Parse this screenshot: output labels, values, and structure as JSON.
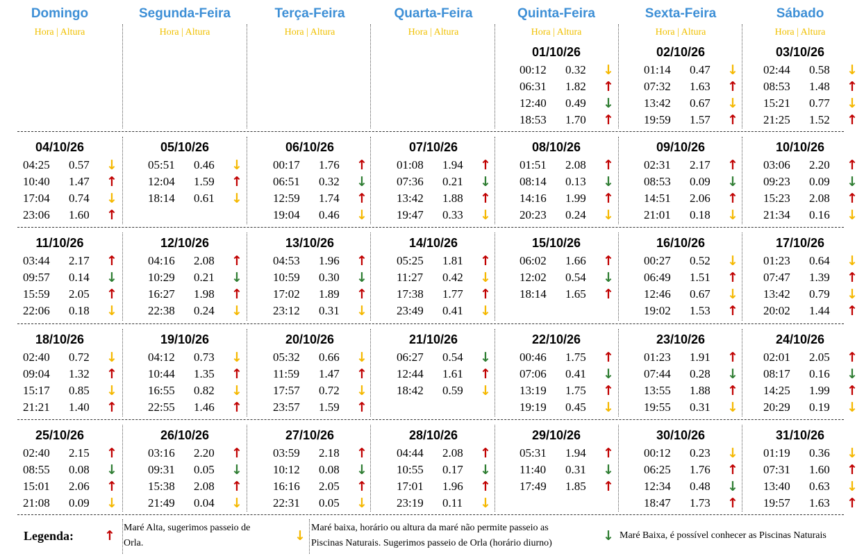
{
  "header": {
    "days": [
      "Domingo",
      "Segunda-Feira",
      "Terça-Feira",
      "Quarta-Feira",
      "Quinta-Feira",
      "Sexta-Feira",
      "Sábado"
    ],
    "subheader": "Hora | Altura"
  },
  "weeks": [
    [
      null,
      null,
      null,
      null,
      {
        "date": "01/10/26",
        "tides": [
          {
            "t": "00:12",
            "h": "0.32",
            "a": "↓",
            "c": "#f5b800"
          },
          {
            "t": "06:31",
            "h": "1.82",
            "a": "↑",
            "c": "#c00000"
          },
          {
            "t": "12:40",
            "h": "0.49",
            "a": "↓",
            "c": "#2e7d32"
          },
          {
            "t": "18:53",
            "h": "1.70",
            "a": "↑",
            "c": "#c00000"
          }
        ]
      },
      {
        "date": "02/10/26",
        "tides": [
          {
            "t": "01:14",
            "h": "0.47",
            "a": "↓",
            "c": "#f5b800"
          },
          {
            "t": "07:32",
            "h": "1.63",
            "a": "↑",
            "c": "#c00000"
          },
          {
            "t": "13:42",
            "h": "0.67",
            "a": "↓",
            "c": "#f5b800"
          },
          {
            "t": "19:59",
            "h": "1.57",
            "a": "↑",
            "c": "#c00000"
          }
        ]
      },
      {
        "date": "03/10/26",
        "tides": [
          {
            "t": "02:44",
            "h": "0.58",
            "a": "↓",
            "c": "#f5b800"
          },
          {
            "t": "08:53",
            "h": "1.48",
            "a": "↑",
            "c": "#c00000"
          },
          {
            "t": "15:21",
            "h": "0.77",
            "a": "↓",
            "c": "#f5b800"
          },
          {
            "t": "21:25",
            "h": "1.52",
            "a": "↑",
            "c": "#c00000"
          }
        ]
      }
    ],
    [
      {
        "date": "04/10/26",
        "tides": [
          {
            "t": "04:25",
            "h": "0.57",
            "a": "↓",
            "c": "#f5b800"
          },
          {
            "t": "10:40",
            "h": "1.47",
            "a": "↑",
            "c": "#c00000"
          },
          {
            "t": "17:04",
            "h": "0.74",
            "a": "↓",
            "c": "#f5b800"
          },
          {
            "t": "23:06",
            "h": "1.60",
            "a": "↑",
            "c": "#c00000"
          }
        ]
      },
      {
        "date": "05/10/26",
        "tides": [
          {
            "t": "05:51",
            "h": "0.46",
            "a": "↓",
            "c": "#f5b800"
          },
          {
            "t": "12:04",
            "h": "1.59",
            "a": "↑",
            "c": "#c00000"
          },
          {
            "t": "18:14",
            "h": "0.61",
            "a": "↓",
            "c": "#f5b800"
          }
        ]
      },
      {
        "date": "06/10/26",
        "tides": [
          {
            "t": "00:17",
            "h": "1.76",
            "a": "↑",
            "c": "#c00000"
          },
          {
            "t": "06:51",
            "h": "0.32",
            "a": "↓",
            "c": "#2e7d32"
          },
          {
            "t": "12:59",
            "h": "1.74",
            "a": "↑",
            "c": "#c00000"
          },
          {
            "t": "19:04",
            "h": "0.46",
            "a": "↓",
            "c": "#f5b800"
          }
        ]
      },
      {
        "date": "07/10/26",
        "tides": [
          {
            "t": "01:08",
            "h": "1.94",
            "a": "↑",
            "c": "#c00000"
          },
          {
            "t": "07:36",
            "h": "0.21",
            "a": "↓",
            "c": "#2e7d32"
          },
          {
            "t": "13:42",
            "h": "1.88",
            "a": "↑",
            "c": "#c00000"
          },
          {
            "t": "19:47",
            "h": "0.33",
            "a": "↓",
            "c": "#f5b800"
          }
        ]
      },
      {
        "date": "08/10/26",
        "tides": [
          {
            "t": "01:51",
            "h": "2.08",
            "a": "↑",
            "c": "#c00000"
          },
          {
            "t": "08:14",
            "h": "0.13",
            "a": "↓",
            "c": "#2e7d32"
          },
          {
            "t": "14:16",
            "h": "1.99",
            "a": "↑",
            "c": "#c00000"
          },
          {
            "t": "20:23",
            "h": "0.24",
            "a": "↓",
            "c": "#f5b800"
          }
        ]
      },
      {
        "date": "09/10/26",
        "tides": [
          {
            "t": "02:31",
            "h": "2.17",
            "a": "↑",
            "c": "#c00000"
          },
          {
            "t": "08:53",
            "h": "0.09",
            "a": "↓",
            "c": "#2e7d32"
          },
          {
            "t": "14:51",
            "h": "2.06",
            "a": "↑",
            "c": "#c00000"
          },
          {
            "t": "21:01",
            "h": "0.18",
            "a": "↓",
            "c": "#f5b800"
          }
        ]
      },
      {
        "date": "10/10/26",
        "tides": [
          {
            "t": "03:06",
            "h": "2.20",
            "a": "↑",
            "c": "#c00000"
          },
          {
            "t": "09:23",
            "h": "0.09",
            "a": "↓",
            "c": "#2e7d32"
          },
          {
            "t": "15:23",
            "h": "2.08",
            "a": "↑",
            "c": "#c00000"
          },
          {
            "t": "21:34",
            "h": "0.16",
            "a": "↓",
            "c": "#f5b800"
          }
        ]
      }
    ],
    [
      {
        "date": "11/10/26",
        "tides": [
          {
            "t": "03:44",
            "h": "2.17",
            "a": "↑",
            "c": "#c00000"
          },
          {
            "t": "09:57",
            "h": "0.14",
            "a": "↓",
            "c": "#2e7d32"
          },
          {
            "t": "15:59",
            "h": "2.05",
            "a": "↑",
            "c": "#c00000"
          },
          {
            "t": "22:06",
            "h": "0.18",
            "a": "↓",
            "c": "#f5b800"
          }
        ]
      },
      {
        "date": "12/10/26",
        "tides": [
          {
            "t": "04:16",
            "h": "2.08",
            "a": "↑",
            "c": "#c00000"
          },
          {
            "t": "10:29",
            "h": "0.21",
            "a": "↓",
            "c": "#2e7d32"
          },
          {
            "t": "16:27",
            "h": "1.98",
            "a": "↑",
            "c": "#c00000"
          },
          {
            "t": "22:38",
            "h": "0.24",
            "a": "↓",
            "c": "#f5b800"
          }
        ]
      },
      {
        "date": "13/10/26",
        "tides": [
          {
            "t": "04:53",
            "h": "1.96",
            "a": "↑",
            "c": "#c00000"
          },
          {
            "t": "10:59",
            "h": "0.30",
            "a": "↓",
            "c": "#2e7d32"
          },
          {
            "t": "17:02",
            "h": "1.89",
            "a": "↑",
            "c": "#c00000"
          },
          {
            "t": "23:12",
            "h": "0.31",
            "a": "↓",
            "c": "#f5b800"
          }
        ]
      },
      {
        "date": "14/10/26",
        "tides": [
          {
            "t": "05:25",
            "h": "1.81",
            "a": "↑",
            "c": "#c00000"
          },
          {
            "t": "11:27",
            "h": "0.42",
            "a": "↓",
            "c": "#f5b800"
          },
          {
            "t": "17:38",
            "h": "1.77",
            "a": "↑",
            "c": "#c00000"
          },
          {
            "t": "23:49",
            "h": "0.41",
            "a": "↓",
            "c": "#f5b800"
          }
        ]
      },
      {
        "date": "15/10/26",
        "tides": [
          {
            "t": "06:02",
            "h": "1.66",
            "a": "↑",
            "c": "#c00000"
          },
          {
            "t": "12:02",
            "h": "0.54",
            "a": "↓",
            "c": "#2e7d32"
          },
          {
            "t": "18:14",
            "h": "1.65",
            "a": "↑",
            "c": "#c00000"
          }
        ]
      },
      {
        "date": "16/10/26",
        "tides": [
          {
            "t": "00:27",
            "h": "0.52",
            "a": "↓",
            "c": "#f5b800"
          },
          {
            "t": "06:49",
            "h": "1.51",
            "a": "↑",
            "c": "#c00000"
          },
          {
            "t": "12:46",
            "h": "0.67",
            "a": "↓",
            "c": "#f5b800"
          },
          {
            "t": "19:02",
            "h": "1.53",
            "a": "↑",
            "c": "#c00000"
          }
        ]
      },
      {
        "date": "17/10/26",
        "tides": [
          {
            "t": "01:23",
            "h": "0.64",
            "a": "↓",
            "c": "#f5b800"
          },
          {
            "t": "07:47",
            "h": "1.39",
            "a": "↑",
            "c": "#c00000"
          },
          {
            "t": "13:42",
            "h": "0.79",
            "a": "↓",
            "c": "#f5b800"
          },
          {
            "t": "20:02",
            "h": "1.44",
            "a": "↑",
            "c": "#c00000"
          }
        ]
      }
    ],
    [
      {
        "date": "18/10/26",
        "tides": [
          {
            "t": "02:40",
            "h": "0.72",
            "a": "↓",
            "c": "#f5b800"
          },
          {
            "t": "09:04",
            "h": "1.32",
            "a": "↑",
            "c": "#c00000"
          },
          {
            "t": "15:17",
            "h": "0.85",
            "a": "↓",
            "c": "#f5b800"
          },
          {
            "t": "21:21",
            "h": "1.40",
            "a": "↑",
            "c": "#c00000"
          }
        ]
      },
      {
        "date": "19/10/26",
        "tides": [
          {
            "t": "04:12",
            "h": "0.73",
            "a": "↓",
            "c": "#f5b800"
          },
          {
            "t": "10:44",
            "h": "1.35",
            "a": "↑",
            "c": "#c00000"
          },
          {
            "t": "16:55",
            "h": "0.82",
            "a": "↓",
            "c": "#f5b800"
          },
          {
            "t": "22:55",
            "h": "1.46",
            "a": "↑",
            "c": "#c00000"
          }
        ]
      },
      {
        "date": "20/10/26",
        "tides": [
          {
            "t": "05:32",
            "h": "0.66",
            "a": "↓",
            "c": "#f5b800"
          },
          {
            "t": "11:59",
            "h": "1.47",
            "a": "↑",
            "c": "#c00000"
          },
          {
            "t": "17:57",
            "h": "0.72",
            "a": "↓",
            "c": "#f5b800"
          },
          {
            "t": "23:57",
            "h": "1.59",
            "a": "↑",
            "c": "#c00000"
          }
        ]
      },
      {
        "date": "21/10/26",
        "tides": [
          {
            "t": "06:27",
            "h": "0.54",
            "a": "↓",
            "c": "#2e7d32"
          },
          {
            "t": "12:44",
            "h": "1.61",
            "a": "↑",
            "c": "#c00000"
          },
          {
            "t": "18:42",
            "h": "0.59",
            "a": "↓",
            "c": "#f5b800"
          }
        ]
      },
      {
        "date": "22/10/26",
        "tides": [
          {
            "t": "00:46",
            "h": "1.75",
            "a": "↑",
            "c": "#c00000"
          },
          {
            "t": "07:06",
            "h": "0.41",
            "a": "↓",
            "c": "#2e7d32"
          },
          {
            "t": "13:19",
            "h": "1.75",
            "a": "↑",
            "c": "#c00000"
          },
          {
            "t": "19:19",
            "h": "0.45",
            "a": "↓",
            "c": "#f5b800"
          }
        ]
      },
      {
        "date": "23/10/26",
        "tides": [
          {
            "t": "01:23",
            "h": "1.91",
            "a": "↑",
            "c": "#c00000"
          },
          {
            "t": "07:44",
            "h": "0.28",
            "a": "↓",
            "c": "#2e7d32"
          },
          {
            "t": "13:55",
            "h": "1.88",
            "a": "↑",
            "c": "#c00000"
          },
          {
            "t": "19:55",
            "h": "0.31",
            "a": "↓",
            "c": "#f5b800"
          }
        ]
      },
      {
        "date": "24/10/26",
        "tides": [
          {
            "t": "02:01",
            "h": "2.05",
            "a": "↑",
            "c": "#c00000"
          },
          {
            "t": "08:17",
            "h": "0.16",
            "a": "↓",
            "c": "#2e7d32"
          },
          {
            "t": "14:25",
            "h": "1.99",
            "a": "↑",
            "c": "#c00000"
          },
          {
            "t": "20:29",
            "h": "0.19",
            "a": "↓",
            "c": "#f5b800"
          }
        ]
      }
    ],
    [
      {
        "date": "25/10/26",
        "tides": [
          {
            "t": "02:40",
            "h": "2.15",
            "a": "↑",
            "c": "#c00000"
          },
          {
            "t": "08:55",
            "h": "0.08",
            "a": "↓",
            "c": "#2e7d32"
          },
          {
            "t": "15:01",
            "h": "2.06",
            "a": "↑",
            "c": "#c00000"
          },
          {
            "t": "21:08",
            "h": "0.09",
            "a": "↓",
            "c": "#f5b800"
          }
        ]
      },
      {
        "date": "26/10/26",
        "tides": [
          {
            "t": "03:16",
            "h": "2.20",
            "a": "↑",
            "c": "#c00000"
          },
          {
            "t": "09:31",
            "h": "0.05",
            "a": "↓",
            "c": "#2e7d32"
          },
          {
            "t": "15:38",
            "h": "2.08",
            "a": "↑",
            "c": "#c00000"
          },
          {
            "t": "21:49",
            "h": "0.04",
            "a": "↓",
            "c": "#f5b800"
          }
        ]
      },
      {
        "date": "27/10/26",
        "tides": [
          {
            "t": "03:59",
            "h": "2.18",
            "a": "↑",
            "c": "#c00000"
          },
          {
            "t": "10:12",
            "h": "0.08",
            "a": "↓",
            "c": "#2e7d32"
          },
          {
            "t": "16:16",
            "h": "2.05",
            "a": "↑",
            "c": "#c00000"
          },
          {
            "t": "22:31",
            "h": "0.05",
            "a": "↓",
            "c": "#f5b800"
          }
        ]
      },
      {
        "date": "28/10/26",
        "tides": [
          {
            "t": "04:44",
            "h": "2.08",
            "a": "↑",
            "c": "#c00000"
          },
          {
            "t": "10:55",
            "h": "0.17",
            "a": "↓",
            "c": "#2e7d32"
          },
          {
            "t": "17:01",
            "h": "1.96",
            "a": "↑",
            "c": "#c00000"
          },
          {
            "t": "23:19",
            "h": "0.11",
            "a": "↓",
            "c": "#f5b800"
          }
        ]
      },
      {
        "date": "29/10/26",
        "tides": [
          {
            "t": "05:31",
            "h": "1.94",
            "a": "↑",
            "c": "#c00000"
          },
          {
            "t": "11:40",
            "h": "0.31",
            "a": "↓",
            "c": "#2e7d32"
          },
          {
            "t": "17:49",
            "h": "1.85",
            "a": "↑",
            "c": "#c00000"
          }
        ]
      },
      {
        "date": "30/10/26",
        "tides": [
          {
            "t": "00:12",
            "h": "0.23",
            "a": "↓",
            "c": "#f5b800"
          },
          {
            "t": "06:25",
            "h": "1.76",
            "a": "↑",
            "c": "#c00000"
          },
          {
            "t": "12:34",
            "h": "0.48",
            "a": "↓",
            "c": "#2e7d32"
          },
          {
            "t": "18:47",
            "h": "1.73",
            "a": "↑",
            "c": "#c00000"
          }
        ]
      },
      {
        "date": "31/10/26",
        "tides": [
          {
            "t": "01:19",
            "h": "0.36",
            "a": "↓",
            "c": "#f5b800"
          },
          {
            "t": "07:31",
            "h": "1.60",
            "a": "↑",
            "c": "#c00000"
          },
          {
            "t": "13:40",
            "h": "0.63",
            "a": "↓",
            "c": "#f5b800"
          },
          {
            "t": "19:57",
            "h": "1.63",
            "a": "↑",
            "c": "#c00000"
          }
        ]
      }
    ]
  ],
  "legend": {
    "title": "Legenda:",
    "items": [
      {
        "a": "↑",
        "c": "#c00000",
        "text": "Maré Alta, sugerimos passeio de Orla."
      },
      {
        "a": "↓",
        "c": "#f5b800",
        "text": "Maré baixa, horário ou altura da maré não permite passeio as Piscinas Naturais. Sugerimos passeio de Orla (horário diurno)"
      },
      {
        "a": "↓",
        "c": "#2e7d32",
        "text": "Maré Baixa, é possível conhecer as Piscinas Naturais"
      }
    ]
  }
}
